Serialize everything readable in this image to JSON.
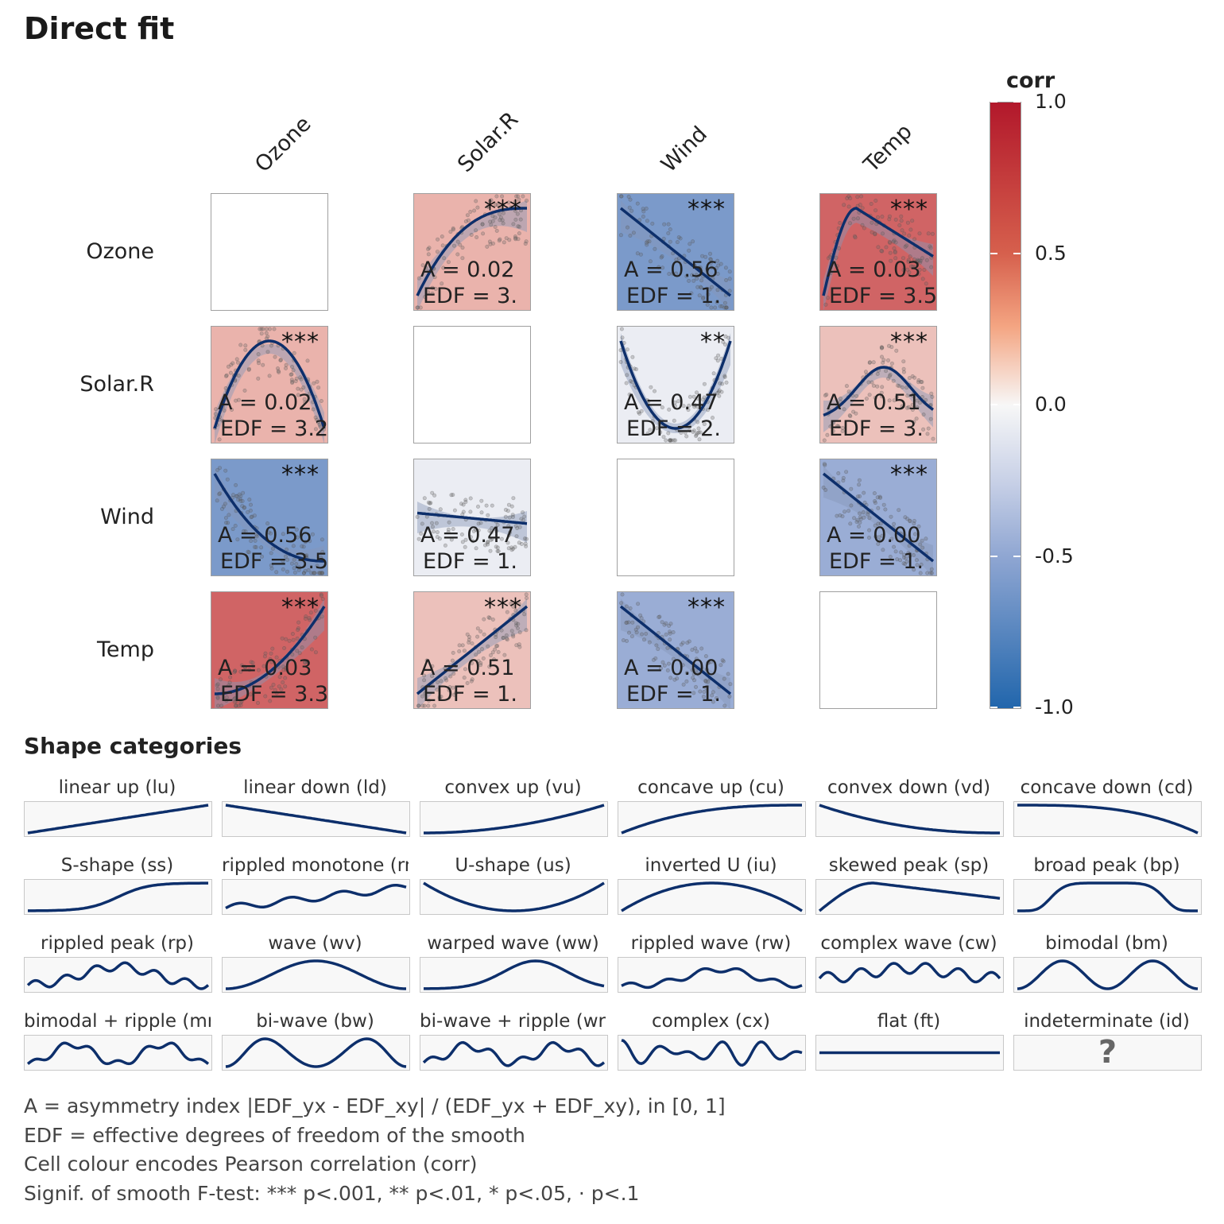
{
  "title": "Direct fit",
  "chart_data": {
    "type": "heatmap",
    "variables": [
      "Ozone",
      "Solar.R",
      "Wind",
      "Temp"
    ],
    "legend": {
      "title": "corr",
      "ticks": [
        "1.0",
        "0.5",
        "0.0",
        "-0.5",
        "-1.0"
      ],
      "range": [
        -1,
        1
      ],
      "colors": [
        "#b2182b",
        "#f7f7f7",
        "#2166ac"
      ],
      "placement": "right"
    },
    "cells": [
      {
        "row": "Ozone",
        "col": "Solar.R",
        "corr": 0.35,
        "stars": "***",
        "A": "A = 0.02",
        "EDF": "EDF = 3.",
        "shape": "cu"
      },
      {
        "row": "Ozone",
        "col": "Wind",
        "corr": -0.6,
        "stars": "***",
        "A": "A = 0.56",
        "EDF": "EDF = 1.",
        "shape": "ld"
      },
      {
        "row": "Ozone",
        "col": "Temp",
        "corr": 0.7,
        "stars": "***",
        "A": "A = 0.03",
        "EDF": "EDF = 3.5",
        "shape": "sp"
      },
      {
        "row": "Solar.R",
        "col": "Ozone",
        "corr": 0.35,
        "stars": "***",
        "A": "A = 0.02",
        "EDF": "EDF = 3.2",
        "shape": "iu"
      },
      {
        "row": "Solar.R",
        "col": "Wind",
        "corr": -0.06,
        "stars": "**",
        "A": "A = 0.47",
        "EDF": "EDF = 2.",
        "shape": "us"
      },
      {
        "row": "Solar.R",
        "col": "Temp",
        "corr": 0.28,
        "stars": "***",
        "A": "A = 0.51",
        "EDF": "EDF = 3.",
        "shape": "iu2"
      },
      {
        "row": "Wind",
        "col": "Ozone",
        "corr": -0.6,
        "stars": "***",
        "A": "A = 0.56",
        "EDF": "EDF = 3.5",
        "shape": "vd"
      },
      {
        "row": "Wind",
        "col": "Solar.R",
        "corr": -0.06,
        "stars": "",
        "A": "A = 0.47",
        "EDF": "EDF = 1.",
        "shape": "flatdown"
      },
      {
        "row": "Wind",
        "col": "Temp",
        "corr": -0.46,
        "stars": "***",
        "A": "A = 0.00",
        "EDF": "EDF = 1.",
        "shape": "ld"
      },
      {
        "row": "Temp",
        "col": "Ozone",
        "corr": 0.7,
        "stars": "***",
        "A": "A = 0.03",
        "EDF": "EDF = 3.3",
        "shape": "vu"
      },
      {
        "row": "Temp",
        "col": "Solar.R",
        "corr": 0.28,
        "stars": "***",
        "A": "A = 0.51",
        "EDF": "EDF = 1.",
        "shape": "lu"
      },
      {
        "row": "Temp",
        "col": "Wind",
        "corr": -0.46,
        "stars": "***",
        "A": "A = 0.00",
        "EDF": "EDF = 1.",
        "shape": "ld"
      }
    ]
  },
  "shape_categories": {
    "title": "Shape categories",
    "items": [
      {
        "label": "linear up (lu)",
        "code": "lu"
      },
      {
        "label": "linear down (ld)",
        "code": "ld"
      },
      {
        "label": "convex up (vu)",
        "code": "vu"
      },
      {
        "label": "concave up (cu)",
        "code": "cu"
      },
      {
        "label": "convex down (vd)",
        "code": "vd"
      },
      {
        "label": "concave down (cd)",
        "code": "cd"
      },
      {
        "label": "S-shape (ss)",
        "code": "ss"
      },
      {
        "label": "rippled monotone (rm)",
        "code": "rm"
      },
      {
        "label": "U-shape (us)",
        "code": "us"
      },
      {
        "label": "inverted U (iu)",
        "code": "iu"
      },
      {
        "label": "skewed peak (sp)",
        "code": "sp"
      },
      {
        "label": "broad peak (bp)",
        "code": "bp"
      },
      {
        "label": "rippled peak (rp)",
        "code": "rp"
      },
      {
        "label": "wave (wv)",
        "code": "wv"
      },
      {
        "label": "warped wave (ww)",
        "code": "ww"
      },
      {
        "label": "rippled wave (rw)",
        "code": "rw"
      },
      {
        "label": "complex wave (cw)",
        "code": "cw"
      },
      {
        "label": "bimodal (bm)",
        "code": "bm"
      },
      {
        "label": "bimodal + ripple (mr)",
        "code": "mr"
      },
      {
        "label": "bi-wave (bw)",
        "code": "bw"
      },
      {
        "label": "bi-wave + ripple (wr)",
        "code": "wr"
      },
      {
        "label": "complex (cx)",
        "code": "cx"
      },
      {
        "label": "flat (ft)",
        "code": "ft"
      },
      {
        "label": "indeterminate (id)",
        "code": "id",
        "glyph": "?"
      }
    ]
  },
  "notes": [
    "A = asymmetry index |EDF_yx - EDF_xy| / (EDF_yx + EDF_xy), in [0, 1]",
    "EDF = effective degrees of freedom of the smooth",
    "Cell colour encodes Pearson correlation (corr)",
    "Signif. of smooth F-test: *** p<.001, ** p<.01, * p<.05, · p<.1"
  ],
  "colors": {
    "line": "#0d2f6b",
    "point": "#555555"
  }
}
